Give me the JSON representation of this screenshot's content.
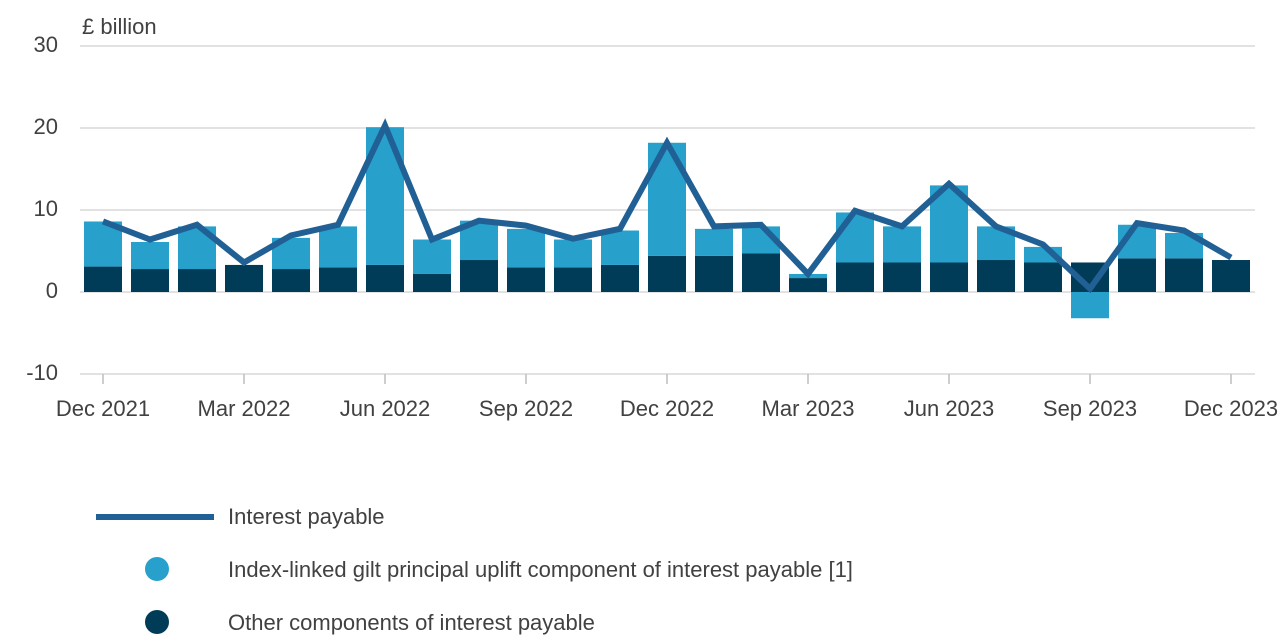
{
  "chart_data": {
    "type": "bar_line",
    "y_axis_label": "£ billion",
    "categories": [
      "Dec 2021",
      null,
      null,
      "Mar 2022",
      null,
      null,
      "Jun 2022",
      null,
      null,
      "Sep 2022",
      null,
      null,
      "Dec 2022",
      null,
      null,
      "Mar 2023",
      null,
      null,
      "Jun 2023",
      null,
      null,
      "Sep 2023",
      null,
      null,
      "Dec 2023"
    ],
    "series": [
      {
        "name": "Interest payable",
        "kind": "line",
        "color": "#206095",
        "values": [
          8.6,
          6.4,
          8.2,
          3.6,
          6.9,
          8.2,
          20.3,
          6.4,
          8.7,
          8.1,
          6.5,
          7.7,
          18.2,
          8.0,
          8.2,
          2.2,
          9.9,
          8.0,
          13.2,
          8.0,
          5.8,
          0.4,
          8.4,
          7.5,
          4.2
        ]
      },
      {
        "name": "Index-linked gilt principal uplift component of interest payable [1]",
        "kind": "bar",
        "color": "#27a0cc",
        "values": [
          5.5,
          3.3,
          5.2,
          0,
          3.8,
          5.0,
          16.8,
          4.2,
          4.8,
          4.7,
          3.4,
          4.2,
          13.8,
          3.3,
          3.3,
          0.5,
          6.1,
          4.4,
          9.4,
          4.1,
          1.9,
          -3.2,
          4.1,
          3.1,
          0
        ]
      },
      {
        "name": "Other components of interest payable",
        "kind": "bar",
        "color": "#003c57",
        "values": [
          3.1,
          2.8,
          2.8,
          3.3,
          2.8,
          3.0,
          3.3,
          2.2,
          3.9,
          3.0,
          3.0,
          3.3,
          4.4,
          4.4,
          4.7,
          1.7,
          3.6,
          3.6,
          3.6,
          3.9,
          3.6,
          3.6,
          4.1,
          4.1,
          3.9
        ]
      }
    ],
    "ylim": [
      -10,
      30
    ],
    "yticks": [
      -10,
      0,
      10,
      20,
      30
    ],
    "grid": true
  }
}
